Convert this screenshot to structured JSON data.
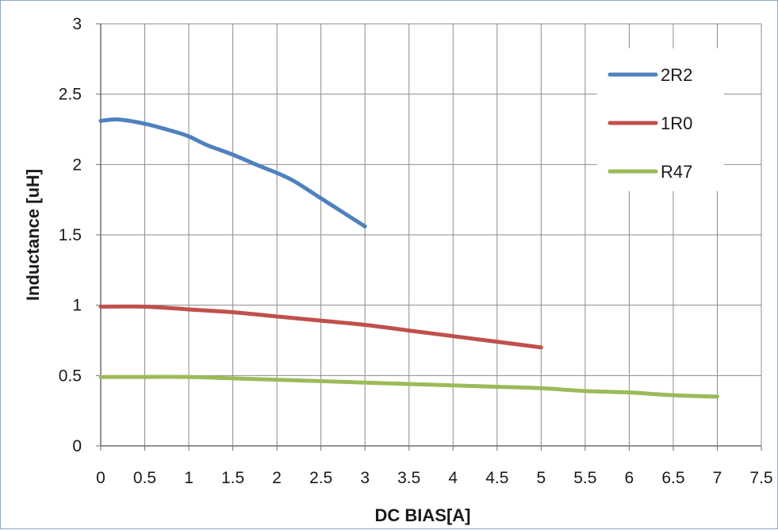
{
  "chart_data": {
    "type": "line",
    "title": "",
    "xlabel": "DC BIAS[A]",
    "ylabel": "Inductance [uH]",
    "xlim": [
      0,
      7.5
    ],
    "ylim": [
      0,
      3
    ],
    "xticks": [
      0,
      0.5,
      1,
      1.5,
      2,
      2.5,
      3,
      3.5,
      4,
      4.5,
      5,
      5.5,
      6,
      6.5,
      7,
      7.5
    ],
    "yticks": [
      0,
      0.5,
      1,
      1.5,
      2,
      2.5,
      3
    ],
    "xtick_labels": [
      "0",
      "0.5",
      "1",
      "1.5",
      "2",
      "2.5",
      "3",
      "3.5",
      "4",
      "4.5",
      "5",
      "5.5",
      "6",
      "6.5",
      "7",
      "7.5"
    ],
    "ytick_labels": [
      "0",
      "0.5",
      "1",
      "1.5",
      "2",
      "2.5",
      "3"
    ],
    "grid": true,
    "legend_position": "top-right",
    "series": [
      {
        "name": "2R2",
        "color": "#4f81bd",
        "x": [
          0,
          0.2,
          0.5,
          0.8,
          1.0,
          1.2,
          1.5,
          1.8,
          2.0,
          2.2,
          2.5,
          2.8,
          3.0
        ],
        "y": [
          2.31,
          2.32,
          2.29,
          2.24,
          2.2,
          2.14,
          2.07,
          1.99,
          1.94,
          1.88,
          1.76,
          1.64,
          1.56
        ]
      },
      {
        "name": "1R0",
        "color": "#c0504d",
        "x": [
          0,
          0.5,
          1.0,
          1.5,
          2.0,
          2.5,
          3.0,
          3.5,
          4.0,
          4.5,
          5.0
        ],
        "y": [
          0.99,
          0.99,
          0.97,
          0.95,
          0.92,
          0.89,
          0.86,
          0.82,
          0.78,
          0.74,
          0.7
        ]
      },
      {
        "name": "R47",
        "color": "#9bbb59",
        "x": [
          0,
          0.5,
          1.0,
          1.5,
          2.0,
          2.5,
          3.0,
          3.5,
          4.0,
          4.5,
          5.0,
          5.5,
          6.0,
          6.5,
          7.0
        ],
        "y": [
          0.49,
          0.49,
          0.49,
          0.48,
          0.47,
          0.46,
          0.45,
          0.44,
          0.43,
          0.42,
          0.41,
          0.39,
          0.38,
          0.36,
          0.35
        ]
      }
    ]
  }
}
